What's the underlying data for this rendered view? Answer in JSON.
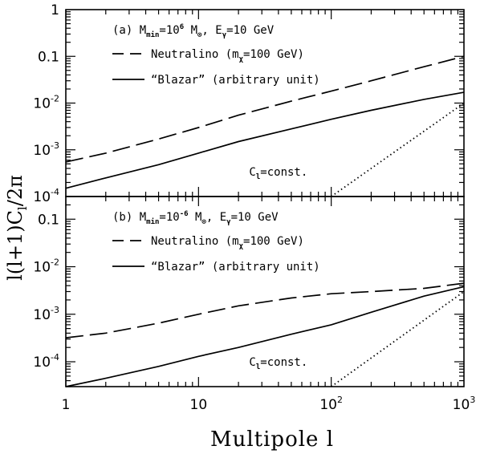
{
  "chart_data": [
    {
      "type": "line",
      "panel_label": "(a)",
      "annotation": {
        "label": "M",
        "label_sub": "min",
        "eq": "=10",
        "eq_sup": "6",
        "unit": " M",
        "unit_sub": "⊙",
        "sep": ", E",
        "sep_sub": "γ",
        "energy": "=10 GeV"
      },
      "xscale": "log",
      "yscale": "log",
      "xlim": [
        1,
        1000
      ],
      "ylim": [
        0.0001,
        1
      ],
      "x_ticks": [
        {
          "v": 1,
          "base": "1",
          "exp": ""
        },
        {
          "v": 10,
          "base": "10",
          "exp": ""
        },
        {
          "v": 100,
          "base": "10",
          "exp": "2"
        },
        {
          "v": 1000,
          "base": "10",
          "exp": "3"
        }
      ],
      "y_ticks": [
        {
          "v": 1,
          "base": "1",
          "exp": ""
        },
        {
          "v": 0.1,
          "base": "0.1",
          "exp": ""
        },
        {
          "v": 0.01,
          "base": "10",
          "exp": "-2"
        },
        {
          "v": 0.001,
          "base": "10",
          "exp": "-3"
        },
        {
          "v": 0.0001,
          "base": "10",
          "exp": "-4"
        }
      ],
      "series": [
        {
          "name": "Neutralino",
          "legend_tail": " (m",
          "legend_sub": "χ",
          "legend_end": "=100 GeV)",
          "style": "dashed",
          "x": [
            1,
            2,
            5,
            10,
            20,
            50,
            100,
            200,
            500,
            1000
          ],
          "y": [
            0.00055,
            0.00085,
            0.0017,
            0.003,
            0.0055,
            0.011,
            0.018,
            0.03,
            0.06,
            0.1
          ]
        },
        {
          "name": "“Blazar” (arbitrary unit)",
          "style": "solid",
          "x": [
            1,
            2,
            5,
            10,
            20,
            50,
            100,
            200,
            500,
            1000
          ],
          "y": [
            0.00015,
            0.00025,
            0.00048,
            0.00085,
            0.0015,
            0.0028,
            0.0045,
            0.007,
            0.012,
            0.017
          ]
        },
        {
          "name": "C",
          "name_sub": "l",
          "name_tail": "=const.",
          "style": "dotted",
          "x": [
            100,
            1000
          ],
          "y": [
            0.0001,
            0.01
          ]
        }
      ]
    },
    {
      "type": "line",
      "panel_label": "(b)",
      "annotation": {
        "label": "M",
        "label_sub": "min",
        "eq": "=10",
        "eq_sup": "-6",
        "unit": " M",
        "unit_sub": "⊙",
        "sep": ", E",
        "sep_sub": "γ",
        "energy": "=10 GeV"
      },
      "xscale": "log",
      "yscale": "log",
      "xlim": [
        1,
        1000
      ],
      "ylim": [
        3e-05,
        0.3
      ],
      "y_ticks": [
        {
          "v": 0.1,
          "base": "0.1",
          "exp": ""
        },
        {
          "v": 0.01,
          "base": "10",
          "exp": "-2"
        },
        {
          "v": 0.001,
          "base": "10",
          "exp": "-3"
        },
        {
          "v": 0.0001,
          "base": "10",
          "exp": "-4"
        }
      ],
      "series": [
        {
          "name": "Neutralino",
          "legend_tail": " (m",
          "legend_sub": "χ",
          "legend_end": "=100 GeV)",
          "style": "dashed",
          "x": [
            1,
            2,
            5,
            10,
            20,
            50,
            100,
            200,
            500,
            1000
          ],
          "y": [
            0.00032,
            0.0004,
            0.00065,
            0.001,
            0.0015,
            0.0022,
            0.0027,
            0.003,
            0.0035,
            0.0045
          ]
        },
        {
          "name": "“Blazar” (arbitrary unit)",
          "style": "solid",
          "x": [
            1,
            2,
            5,
            10,
            20,
            50,
            100,
            200,
            500,
            1000
          ],
          "y": [
            3e-05,
            4.5e-05,
            8e-05,
            0.00013,
            0.0002,
            0.00038,
            0.0006,
            0.0011,
            0.0024,
            0.0038
          ]
        },
        {
          "name": "C",
          "name_sub": "l",
          "name_tail": "=const.",
          "style": "dotted",
          "x": [
            100,
            1000
          ],
          "y": [
            3e-05,
            0.003
          ]
        }
      ]
    }
  ],
  "axes": {
    "xlabel": "Multipole l",
    "ylabel": "l(l+1)C",
    "ylabel_sub": "l",
    "ylabel_tail": "/2π"
  }
}
